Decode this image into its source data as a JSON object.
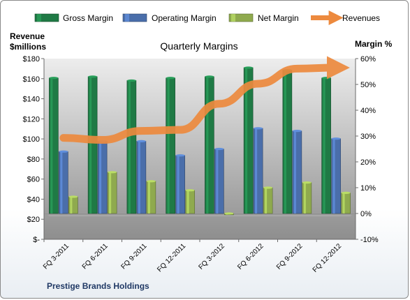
{
  "chart_data": {
    "type": "bar",
    "title": "Quarterly Margins",
    "company": "Prestige Brands Holdings",
    "ylabel_left": [
      "Revenue",
      "$millions"
    ],
    "ylabel_right": "Margin %",
    "categories": [
      "FQ 3-2011",
      "FQ 6-2011",
      "FQ 9-2011",
      "FQ 12-2011",
      "FQ 3-2012",
      "FQ 6-2012",
      "FQ 9-2012",
      "FQ 12-2012"
    ],
    "left_axis": {
      "min": 0,
      "max": 180,
      "step": 20,
      "tick_labels": [
        "$-",
        "$20",
        "$40",
        "$60",
        "$80",
        "$100",
        "$120",
        "$140",
        "$160",
        "$180"
      ]
    },
    "right_axis": {
      "min": -10,
      "max": 60,
      "step": 10,
      "tick_labels": [
        "-10%",
        "0%",
        "10%",
        "20%",
        "30%",
        "40%",
        "50%",
        "60%"
      ]
    },
    "series": [
      {
        "name": "Gross Margin",
        "axis": "right",
        "type": "bar",
        "color": "#1f7a45",
        "values": [
          52.5,
          53,
          51.5,
          52.5,
          53,
          56.5,
          55.5,
          52.5
        ]
      },
      {
        "name": "Operating Margin",
        "axis": "right",
        "type": "bar",
        "color": "#4a6eaa",
        "values": [
          24,
          28,
          28,
          22.5,
          25,
          33,
          32,
          29
        ]
      },
      {
        "name": "Net Margin",
        "axis": "right",
        "type": "bar",
        "color": "#8faa4e",
        "values": [
          6.5,
          16,
          12.5,
          9,
          -0.5,
          10,
          12,
          8
        ]
      },
      {
        "name": "Revenues",
        "axis": "left",
        "type": "line",
        "color": "#ed8a3e",
        "values": [
          101,
          99,
          108,
          109,
          135,
          155,
          170,
          171
        ]
      }
    ],
    "legend_position": "top",
    "grid": false
  }
}
